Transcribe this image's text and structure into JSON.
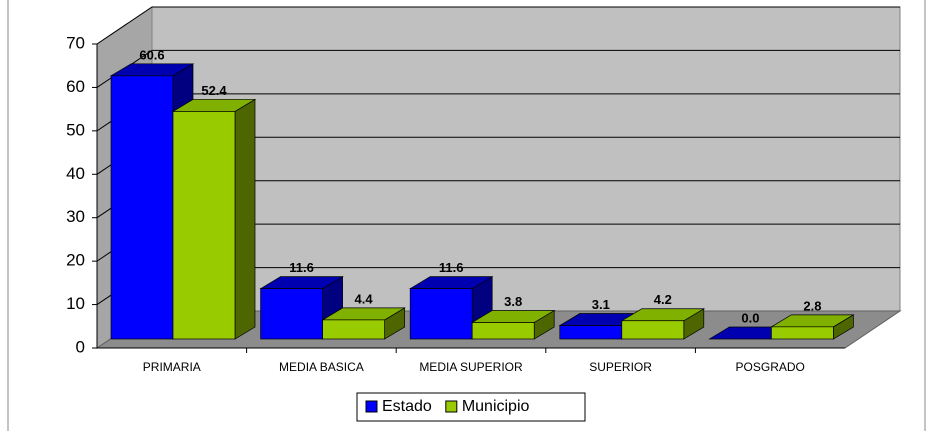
{
  "chart_data": {
    "type": "bar3d",
    "categories": [
      "PRIMARIA",
      "MEDIA BASICA",
      "MEDIA SUPERIOR",
      "SUPERIOR",
      "POSGRADO"
    ],
    "series": [
      {
        "name": "Estado",
        "color": "#0000ff",
        "values": [
          60.6,
          11.6,
          11.6,
          3.1,
          0.0
        ],
        "value_labels": [
          "60.6",
          "11.6",
          "11.6",
          "3.1",
          "0.0"
        ]
      },
      {
        "name": "Municipio",
        "color": "#99cc00",
        "values": [
          52.4,
          4.4,
          3.8,
          4.2,
          2.8
        ],
        "value_labels": [
          "52.4",
          "4.4",
          "3.8",
          "4.2",
          "2.8"
        ]
      }
    ],
    "ylim": [
      0,
      70
    ],
    "yticks": [
      0,
      10,
      20,
      30,
      40,
      50,
      60,
      70
    ],
    "grid": true,
    "legend": "bottom"
  }
}
